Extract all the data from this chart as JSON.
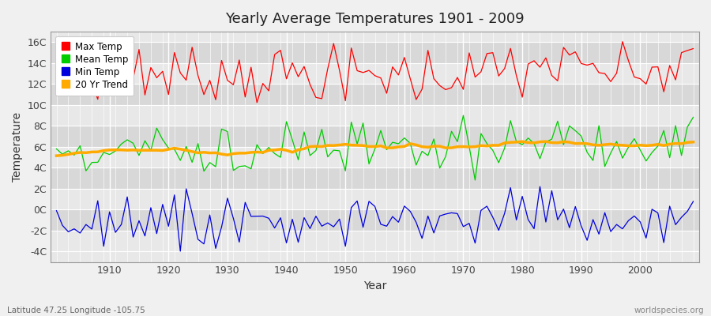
{
  "title": "Yearly Average Temperatures 1901 - 2009",
  "xlabel": "Year",
  "ylabel": "Temperature",
  "lat_lon_label": "Latitude 47.25 Longitude -105.75",
  "watermark": "worldspecies.org",
  "year_start": 1901,
  "year_end": 2009,
  "fig_bg_color": "#f0f0f0",
  "plot_bg_color": "#e8e8e8",
  "band_color_light": "#e8e8e8",
  "band_color_dark": "#d8d8d8",
  "max_temp_color": "#ff0000",
  "mean_temp_color": "#00cc00",
  "min_temp_color": "#0000dd",
  "trend_color": "#ffaa00",
  "legend_labels": [
    "Max Temp",
    "Mean Temp",
    "Min Temp",
    "20 Yr Trend"
  ],
  "yticks": [
    -4,
    -2,
    0,
    2,
    4,
    6,
    8,
    10,
    12,
    14,
    16
  ],
  "ytick_labels": [
    "-4C",
    "-2C",
    "0C",
    "2C",
    "4C",
    "6C",
    "8C",
    "10C",
    "12C",
    "14C",
    "16C"
  ],
  "ylim": [
    -5.0,
    17.0
  ],
  "xlim": [
    1900,
    2010
  ],
  "max_temp_base": 12.8,
  "max_temp_std": 1.3,
  "mean_temp_base": 5.8,
  "mean_temp_std": 1.2,
  "min_temp_base": -1.2,
  "min_temp_std": 1.1,
  "warming_trend": 0.7
}
